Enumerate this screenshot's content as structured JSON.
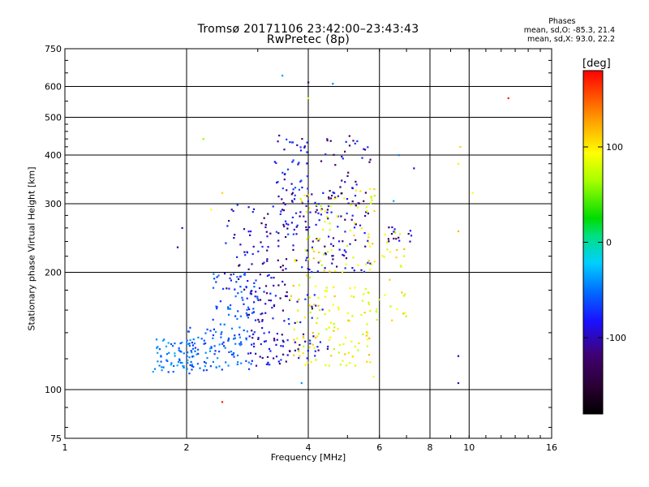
{
  "title": {
    "line1": "Tromsø 20171106 23:42:00–23:43:43",
    "line2": "RwPretec (8p)"
  },
  "phases": {
    "title": "Phases",
    "o_stats": "mean, sd,O: -85.3, 21.4",
    "x_stats": "mean, sd,X:  93.0, 22.2"
  },
  "colorbar": {
    "title": "[deg]",
    "ticks": [
      "100",
      "0",
      "-100"
    ],
    "tick_values": [
      100,
      0,
      -100
    ],
    "range": [
      -180,
      180
    ]
  },
  "chart_data": {
    "type": "scatter",
    "xlabel": "Frequency [MHz]",
    "ylabel": "Stationary phase Virtual Height [km]",
    "xscale": "log",
    "yscale": "log",
    "xlim": [
      1,
      16
    ],
    "ylim": [
      75,
      750
    ],
    "xticks": [
      1,
      2,
      4,
      6,
      8,
      10,
      16
    ],
    "xtick_labels": [
      "1",
      "2",
      "4",
      "6",
      "8",
      "10",
      "16"
    ],
    "yticks": [
      75,
      100,
      200,
      300,
      400,
      500,
      600,
      750
    ],
    "ytick_labels": [
      "75",
      "100",
      "200",
      "300",
      "400",
      "500",
      "600",
      "750"
    ],
    "grid": true,
    "color_by": "phase (deg)",
    "clusters": [
      {
        "x_range": [
          1.65,
          2.1
        ],
        "y_range": [
          110,
          135
        ],
        "phase": -55,
        "count": 70
      },
      {
        "x_range": [
          2.0,
          2.9
        ],
        "y_range": [
          112,
          145
        ],
        "phase": -65,
        "count": 90
      },
      {
        "x_range": [
          2.3,
          3.0
        ],
        "y_range": [
          130,
          200
        ],
        "phase": -75,
        "count": 70
      },
      {
        "x_range": [
          2.8,
          3.6
        ],
        "y_range": [
          115,
          180
        ],
        "phase": -105,
        "count": 90
      },
      {
        "x_range": [
          2.5,
          3.6
        ],
        "y_range": [
          180,
          300
        ],
        "phase": -110,
        "count": 80
      },
      {
        "x_range": [
          3.3,
          4.0
        ],
        "y_range": [
          250,
          450
        ],
        "phase": -95,
        "count": 60
      },
      {
        "x_range": [
          3.6,
          5.8
        ],
        "y_range": [
          200,
          320
        ],
        "phase": -105,
        "count": 110
      },
      {
        "x_range": [
          4.3,
          5.8
        ],
        "y_range": [
          300,
          450
        ],
        "phase": -110,
        "count": 40
      },
      {
        "x_range": [
          3.6,
          5.7
        ],
        "y_range": [
          115,
          185
        ],
        "phase": 95,
        "count": 110
      },
      {
        "x_range": [
          3.6,
          5.9
        ],
        "y_range": [
          185,
          330
        ],
        "phase": 90,
        "count": 70
      },
      {
        "x_range": [
          5.6,
          7.0
        ],
        "y_range": [
          150,
          260
        ],
        "phase": 95,
        "count": 40
      },
      {
        "x_range": [
          6.3,
          7.2
        ],
        "y_range": [
          235,
          262
        ],
        "phase": -115,
        "count": 15
      },
      {
        "x_range": [
          3.7,
          4.5
        ],
        "y_range": [
          120,
          180
        ],
        "phase": -105,
        "count": 30
      }
    ],
    "points": [
      {
        "x": 3.45,
        "y": 640,
        "phase": -40
      },
      {
        "x": 4.0,
        "y": 615,
        "phase": -130
      },
      {
        "x": 4.6,
        "y": 610,
        "phase": -50
      },
      {
        "x": 12.5,
        "y": 560,
        "phase": 170
      },
      {
        "x": 4.0,
        "y": 560,
        "phase": 90
      },
      {
        "x": 9.5,
        "y": 420,
        "phase": 110
      },
      {
        "x": 9.4,
        "y": 380,
        "phase": 100
      },
      {
        "x": 10.2,
        "y": 320,
        "phase": 95
      },
      {
        "x": 9.4,
        "y": 255,
        "phase": 120
      },
      {
        "x": 9.4,
        "y": 122,
        "phase": -110
      },
      {
        "x": 9.4,
        "y": 104,
        "phase": -110
      },
      {
        "x": 2.45,
        "y": 93,
        "phase": 170
      },
      {
        "x": 2.2,
        "y": 440,
        "phase": 60
      },
      {
        "x": 2.45,
        "y": 320,
        "phase": 110
      },
      {
        "x": 1.95,
        "y": 260,
        "phase": -110
      },
      {
        "x": 1.9,
        "y": 232,
        "phase": -115
      },
      {
        "x": 2.3,
        "y": 290,
        "phase": 95
      },
      {
        "x": 6.7,
        "y": 400,
        "phase": -55
      },
      {
        "x": 7.3,
        "y": 370,
        "phase": -110
      },
      {
        "x": 6.5,
        "y": 305,
        "phase": -40
      },
      {
        "x": 3.85,
        "y": 104,
        "phase": -45
      },
      {
        "x": 5.8,
        "y": 108,
        "phase": 95
      }
    ]
  }
}
